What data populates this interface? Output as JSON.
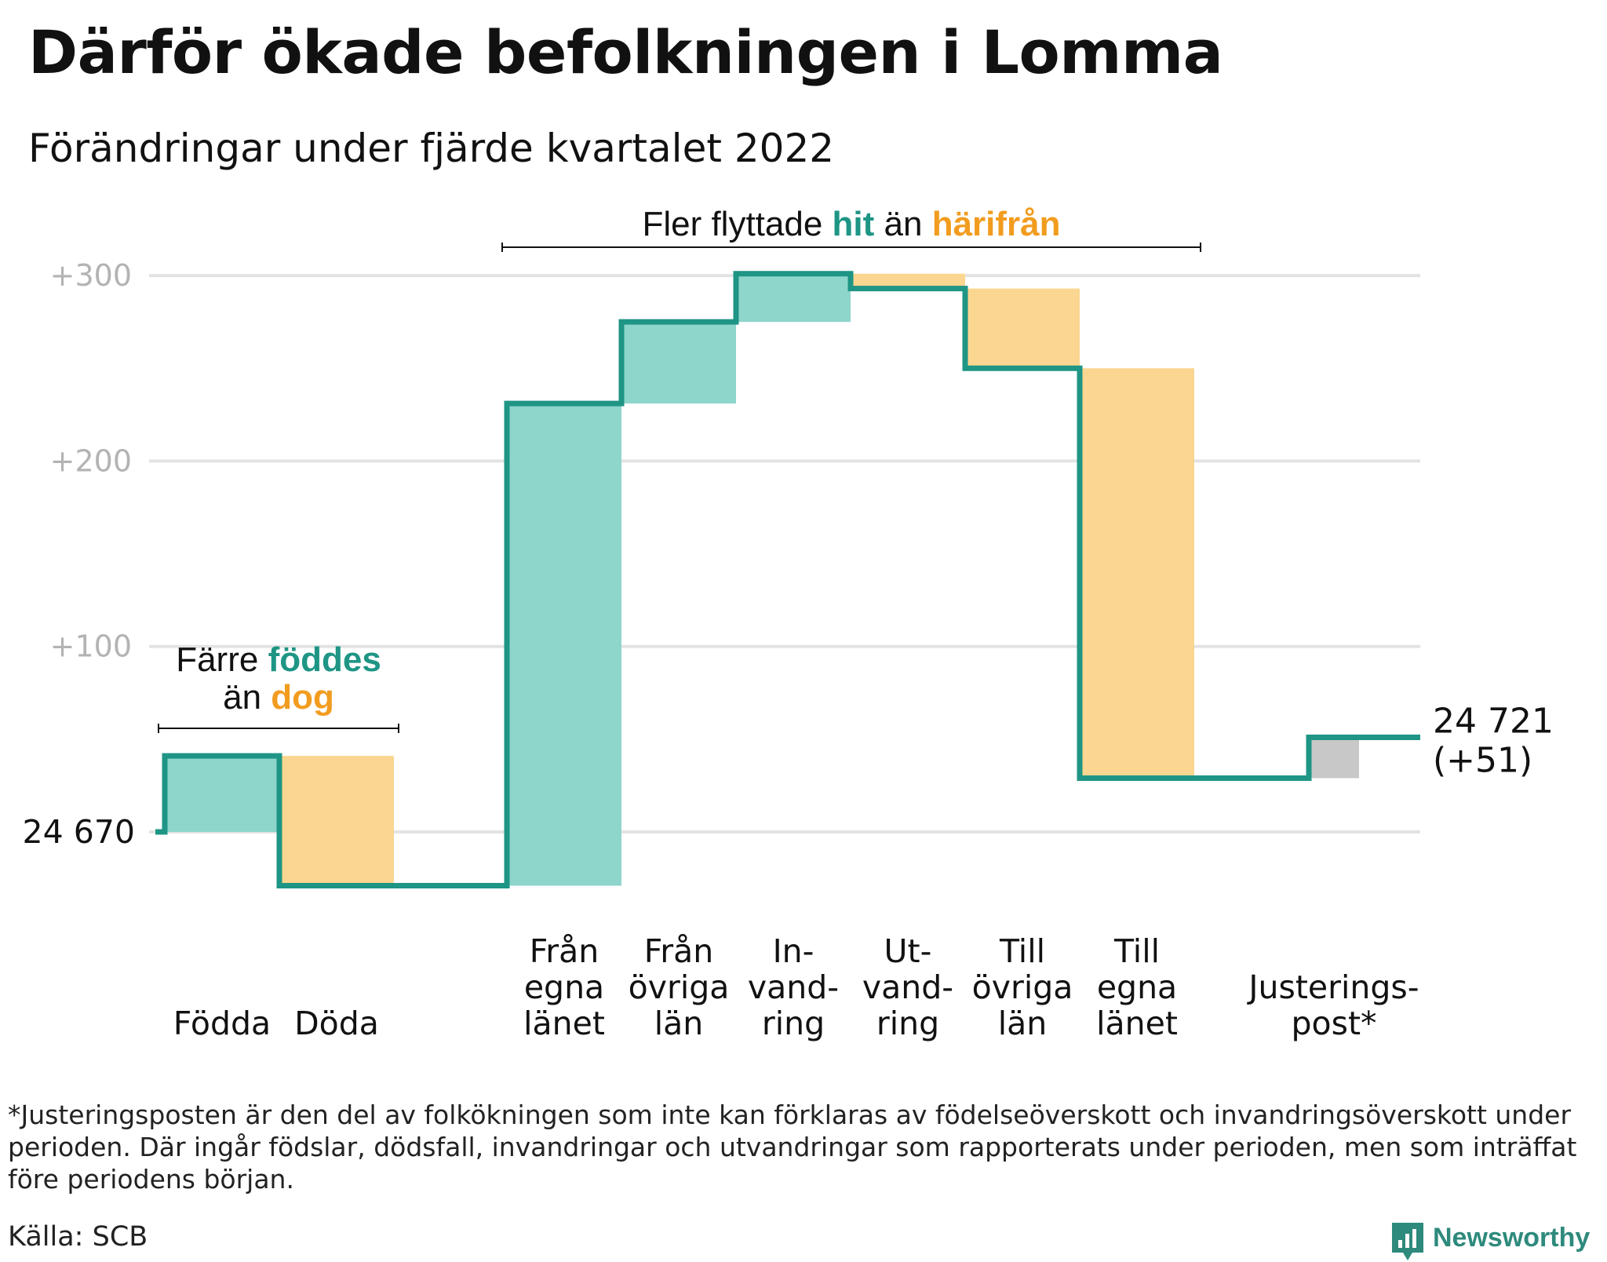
{
  "title": "Därför ökade befolkningen i Lomma",
  "subtitle": "Förändringar under fjärde kvartalet 2022",
  "chart_data": {
    "type": "waterfall",
    "start_value": 24670,
    "start_label": "24 670",
    "end_label_line1": "24 721",
    "end_label_line2": "(+51)",
    "y_ticks": [
      {
        "value": 300,
        "label": "+300"
      },
      {
        "value": 200,
        "label": "+200"
      },
      {
        "value": 100,
        "label": "+100"
      },
      {
        "value": 0,
        "label": ""
      }
    ],
    "ylim": [
      -45,
      330
    ],
    "steps": [
      {
        "name": "Födda",
        "label_lines": [
          "Födda"
        ],
        "change": 41,
        "kind": "in"
      },
      {
        "name": "Döda",
        "label_lines": [
          "Döda"
        ],
        "change": -70,
        "kind": "out"
      },
      {
        "name": "Från egna länet",
        "label_lines": [
          "Från",
          "egna",
          "länet"
        ],
        "change": 260,
        "kind": "in"
      },
      {
        "name": "Från övriga län",
        "label_lines": [
          "Från",
          "övriga",
          "län"
        ],
        "change": 44,
        "kind": "in"
      },
      {
        "name": "Invandring",
        "label_lines": [
          "In-",
          "vand-",
          "ring"
        ],
        "change": 26,
        "kind": "in"
      },
      {
        "name": "Utvandring",
        "label_lines": [
          "Ut-",
          "vand-",
          "ring"
        ],
        "change": -8,
        "kind": "out"
      },
      {
        "name": "Till övriga län",
        "label_lines": [
          "Till",
          "övriga",
          "län"
        ],
        "change": -43,
        "kind": "out"
      },
      {
        "name": "Till egna länet",
        "label_lines": [
          "Till",
          "egna",
          "länet"
        ],
        "change": -221,
        "kind": "out"
      },
      {
        "name": "Justeringspost*",
        "label_lines": [
          "Justerings-",
          "post*"
        ],
        "change": 22,
        "kind": "adjust"
      }
    ],
    "annotations": {
      "births": {
        "line1": "Färre ",
        "line1_highlight": "föddes",
        "line2": "än ",
        "line2_highlight": "dog"
      },
      "migration": {
        "text": "Fler flyttade ",
        "highlight1": "hit",
        "middle": " än ",
        "highlight2": "härifrån"
      }
    },
    "colors": {
      "in": "#8ed5cc",
      "out": "#fad690",
      "adjust": "#c8c8c8",
      "line": "#1e9585",
      "highlight_in": "#1e9585",
      "highlight_out": "#f29c1f",
      "grid": "#e3e3e3",
      "tick": "#b3b3b3"
    }
  },
  "footnote": "*Justeringsposten är den del av folkökningen som inte kan förklaras av födelseöverskott och invandringsöverskott under perioden. Där ingår födslar, dödsfall, invandringar och utvandringar som rapporterats under perioden, men som inträffat före periodens början.",
  "source": "Källa: SCB",
  "logo": {
    "text": "Newsworthy",
    "icon": "newsworthy-bar-chart-icon"
  }
}
